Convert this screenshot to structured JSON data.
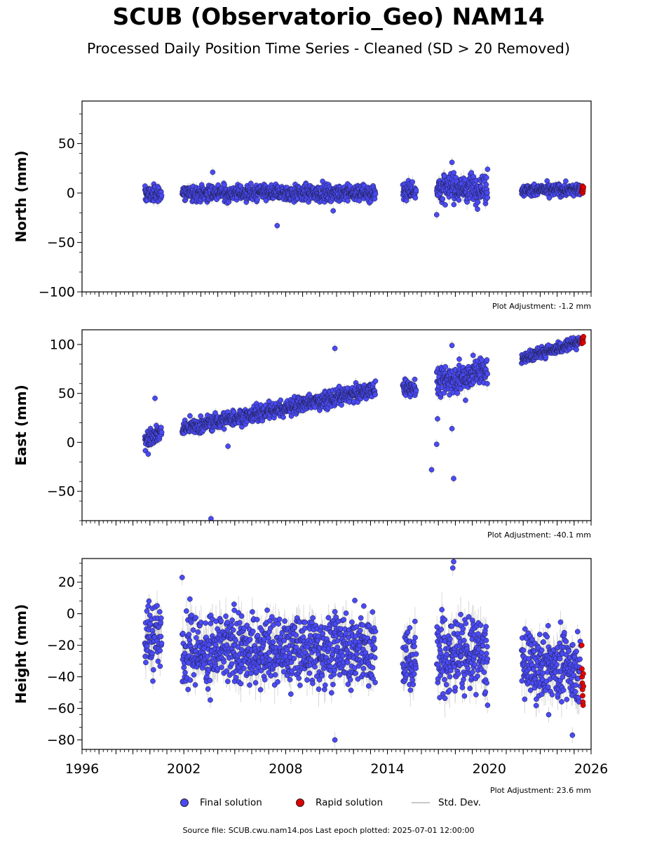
{
  "title": "SCUB (Observatorio_Geo) NAM14",
  "subtitle": "Processed Daily Position Time Series - Cleaned (SD > 20 Removed)",
  "legend": {
    "final_label": "Final solution",
    "rapid_label": "Rapid solution",
    "std_label": "Std. Dev.",
    "final_color": "#4a4af5",
    "rapid_color": "#e00000",
    "std_color": "#c8c8c8"
  },
  "source_text": "Source file: SCUB.cwu.nam14.pos  Last epoch plotted: 2025-07-01 12:00:00",
  "chart_data": [
    {
      "type": "scatter",
      "ylabel": "North (mm)",
      "adjustment": "Plot Adjustment: -1.2 mm",
      "xlim": [
        1996,
        2026
      ],
      "ylim": [
        -100,
        93
      ],
      "yticks": [
        -100,
        -50,
        0,
        50
      ],
      "x_tick_labels_shown": false,
      "segments": [
        {
          "start": 1999.7,
          "end": 2000.7,
          "mean": -1,
          "spread": 4
        },
        {
          "start": 2001.9,
          "end": 2013.3,
          "mean": 0,
          "spread": 4
        },
        {
          "start": 2014.9,
          "end": 2015.7,
          "mean": 3,
          "spread": 5
        },
        {
          "start": 2016.9,
          "end": 2019.9,
          "mean": 5,
          "spread": 7
        },
        {
          "start": 2021.9,
          "end": 2025.4,
          "mean": 3,
          "spread": 3
        }
      ],
      "outliers": [
        [
          2003.7,
          21
        ],
        [
          2007.5,
          -33
        ],
        [
          2010.8,
          -18
        ],
        [
          2017.8,
          31
        ],
        [
          2016.9,
          -22
        ],
        [
          2019.9,
          24
        ]
      ],
      "rapid": {
        "start": 2025.45,
        "end": 2025.55,
        "values": [
          1,
          3,
          5,
          7,
          0,
          2,
          4,
          6
        ]
      }
    },
    {
      "type": "scatter",
      "ylabel": "East (mm)",
      "adjustment": "Plot Adjustment: -40.1 mm",
      "xlim": [
        1996,
        2026
      ],
      "ylim": [
        -80,
        115
      ],
      "yticks": [
        -50,
        0,
        50,
        100
      ],
      "x_tick_labels_shown": false,
      "segments": [
        {
          "start": 1999.7,
          "end": 2000.7,
          "start_value": 4,
          "end_value": 11,
          "spread": 4
        },
        {
          "start": 2001.9,
          "end": 2013.3,
          "start_value": 14,
          "end_value": 54,
          "spread": 4
        },
        {
          "start": 2014.9,
          "end": 2015.7,
          "start_value": 55,
          "end_value": 57,
          "spread": 5
        },
        {
          "start": 2016.9,
          "end": 2019.9,
          "start_value": 60,
          "end_value": 74,
          "spread": 7
        },
        {
          "start": 2021.9,
          "end": 2025.4,
          "start_value": 85,
          "end_value": 104,
          "spread": 3
        }
      ],
      "outliers": [
        [
          2000.3,
          45
        ],
        [
          1999.9,
          -12
        ],
        [
          2004.6,
          -4
        ],
        [
          2003.6,
          -78
        ],
        [
          2010.9,
          96
        ],
        [
          2016.6,
          -28
        ],
        [
          2016.9,
          -2
        ],
        [
          2016.95,
          24
        ],
        [
          2017.9,
          -37
        ],
        [
          2017.8,
          14
        ],
        [
          2017.8,
          99
        ],
        [
          2018.6,
          43
        ]
      ],
      "rapid": {
        "start": 2025.45,
        "end": 2025.55,
        "values": [
          101,
          103,
          105,
          107,
          104,
          106,
          102,
          108
        ]
      }
    },
    {
      "type": "scatter",
      "ylabel": "Height (mm)",
      "adjustment": "Plot Adjustment: 23.6 mm",
      "xlim": [
        1996,
        2026
      ],
      "ylim": [
        -86,
        35
      ],
      "yticks": [
        -80,
        -60,
        -40,
        -20,
        0,
        20
      ],
      "xticks": [
        1996,
        2002,
        2008,
        2014,
        2020,
        2026
      ],
      "x_tick_labels_shown": true,
      "segments": [
        {
          "start": 1999.7,
          "end": 2000.7,
          "mean": -15,
          "spread": 11
        },
        {
          "start": 2001.9,
          "end": 2013.3,
          "mean": -23,
          "spread": 11
        },
        {
          "start": 2014.9,
          "end": 2015.7,
          "mean": -28,
          "spread": 11
        },
        {
          "start": 2016.9,
          "end": 2019.9,
          "mean": -26,
          "spread": 12
        },
        {
          "start": 2021.9,
          "end": 2025.4,
          "mean": -33,
          "spread": 10
        }
      ],
      "outliers": [
        [
          2001.9,
          23
        ],
        [
          2010.9,
          -80
        ],
        [
          2017.9,
          33
        ],
        [
          2017.85,
          29
        ],
        [
          2024.9,
          -77
        ],
        [
          2023.5,
          -64
        ],
        [
          2019.9,
          -58
        ]
      ],
      "rapid": {
        "start": 2025.45,
        "end": 2025.55,
        "values": [
          -20,
          -35,
          -40,
          -44,
          -48,
          -52,
          -56,
          -58,
          -38,
          -46
        ]
      }
    }
  ]
}
